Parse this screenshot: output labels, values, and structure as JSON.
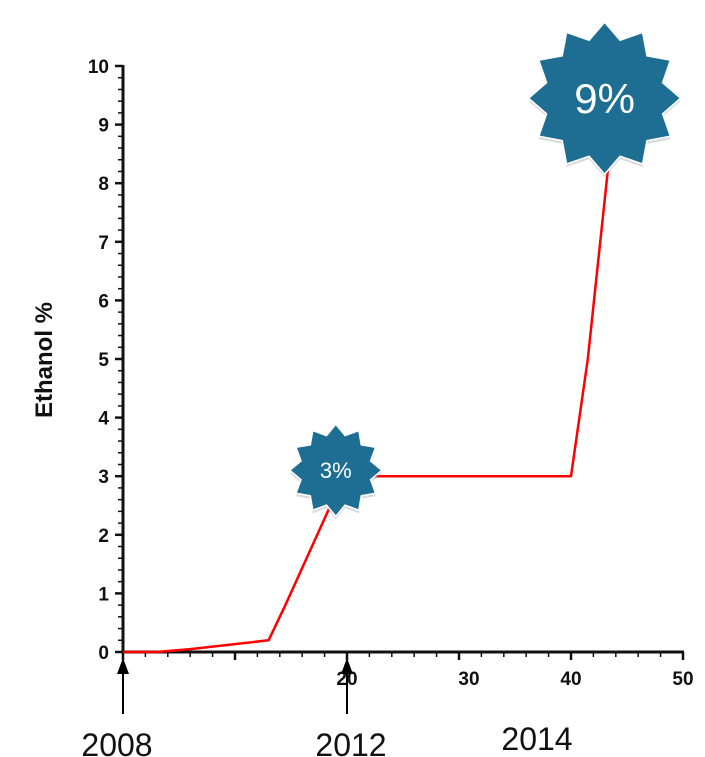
{
  "chart_data": {
    "type": "line",
    "ylabel": "Ethanol %",
    "xlabel": "",
    "xlim": [
      0,
      50
    ],
    "ylim": [
      0,
      10
    ],
    "x_ticks": [
      "20",
      "30",
      "40",
      "50"
    ],
    "y_ticks": [
      "0",
      "1",
      "2",
      "3",
      "4",
      "5",
      "6",
      "7",
      "8",
      "9",
      "10"
    ],
    "grid": false,
    "series": [
      {
        "color": "#ff0000",
        "points": [
          [
            0,
            0
          ],
          [
            3,
            0
          ],
          [
            6,
            0.05
          ],
          [
            13,
            0.2
          ],
          [
            14.5,
            0.8
          ],
          [
            19,
            2.7
          ],
          [
            20,
            3
          ],
          [
            40,
            3
          ],
          [
            41.5,
            5
          ],
          [
            43.5,
            8.6
          ]
        ]
      }
    ],
    "annotations": {
      "year_markers": [
        {
          "label": "2008",
          "x": 0
        },
        {
          "label": "2012",
          "x": 20
        }
      ],
      "year_labels": [
        "2008",
        "2012",
        "2014"
      ],
      "badges": [
        {
          "text": "3%",
          "x": 19,
          "y": 3.1,
          "color": "#1e6e94"
        },
        {
          "text": "9%",
          "x": 43,
          "y": 9.45,
          "color": "#1e6e94"
        }
      ]
    }
  }
}
